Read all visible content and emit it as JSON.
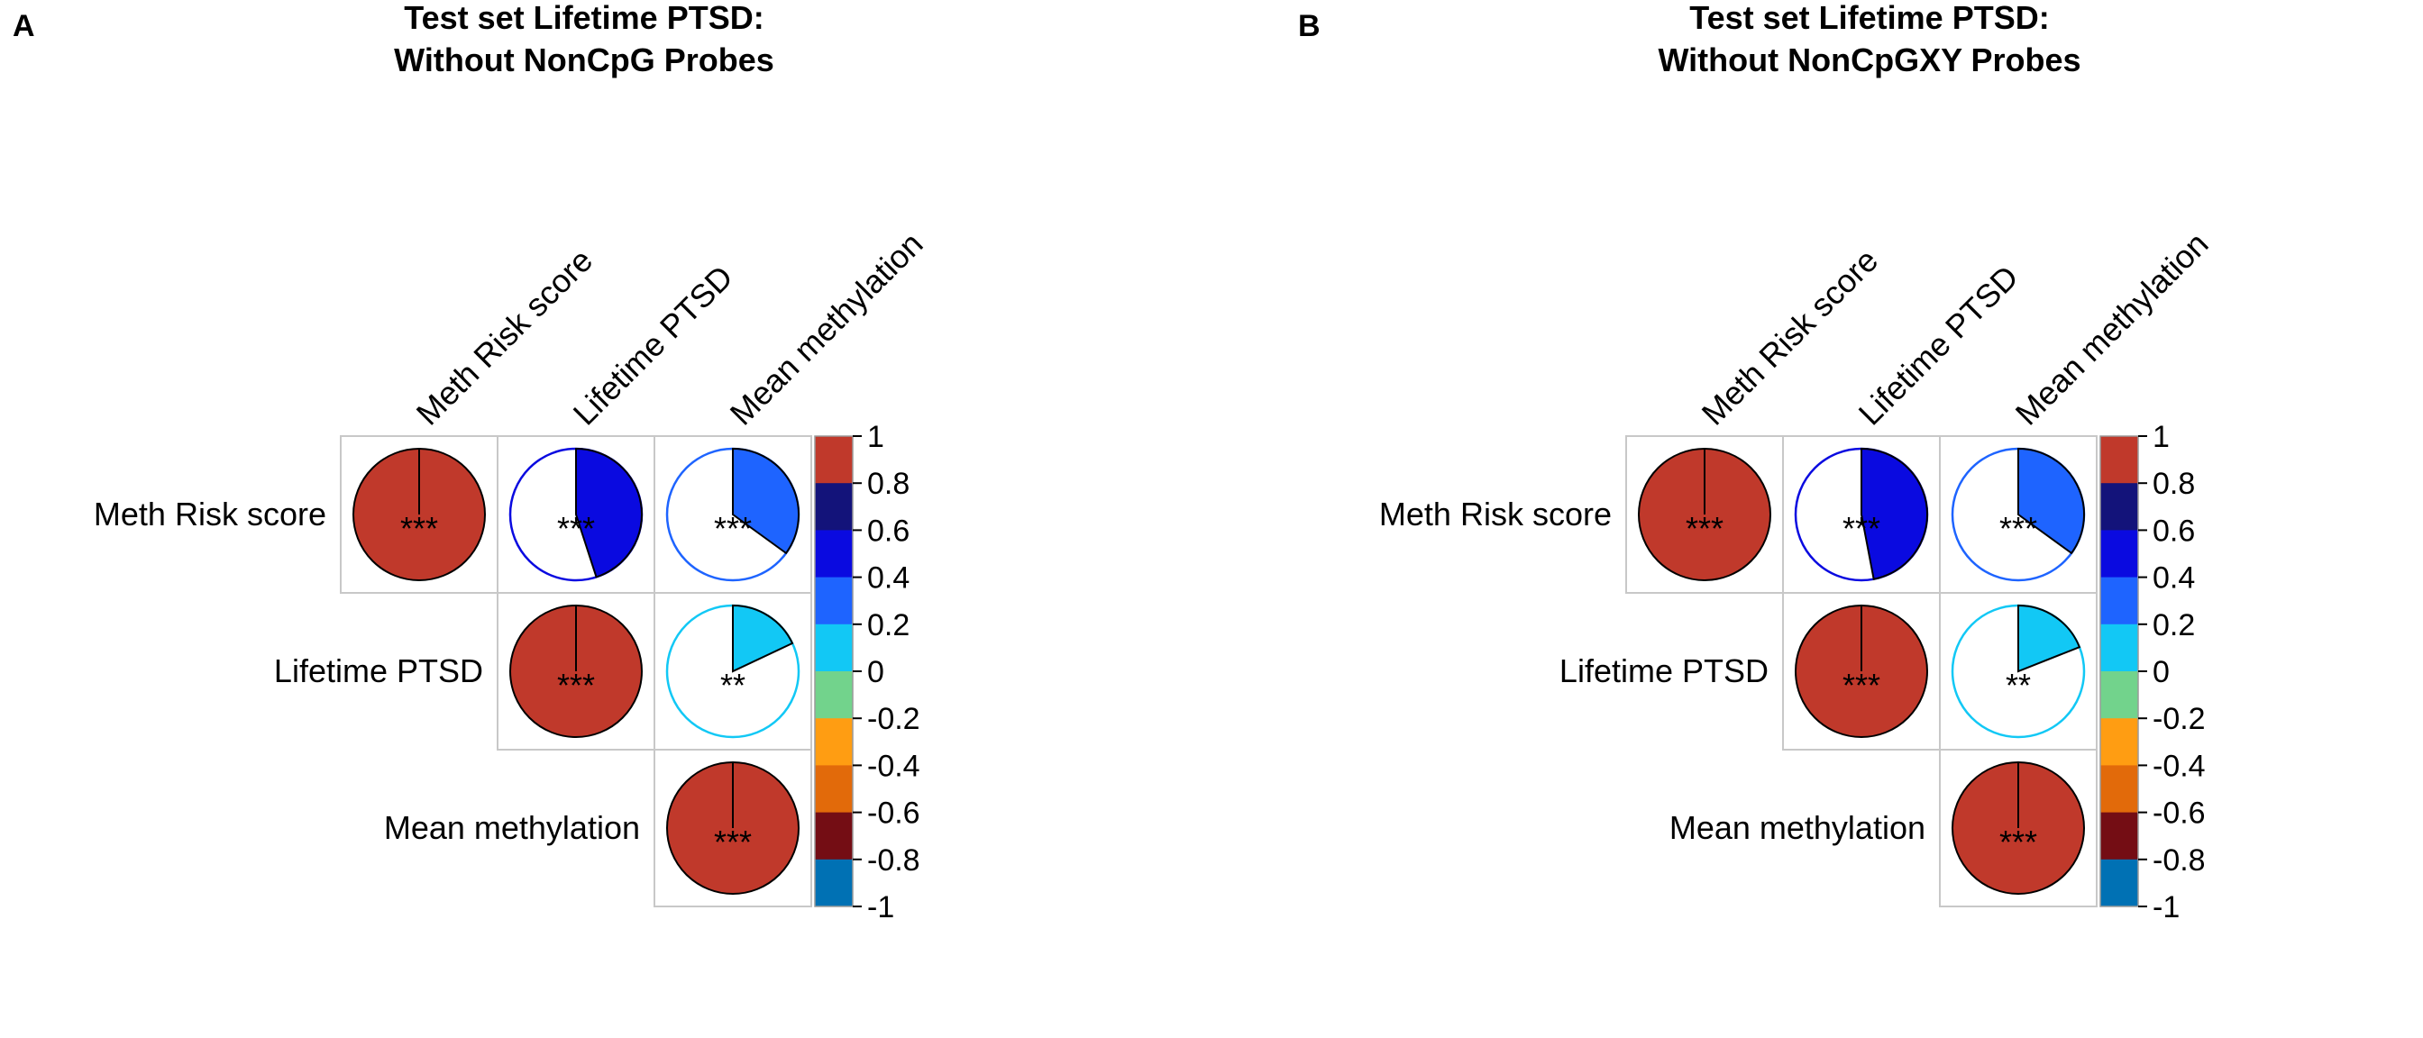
{
  "chart_data": [
    {
      "type": "heatmap",
      "panel_label": "A",
      "title_lines": [
        "Test set Lifetime PTSD:",
        "Without NonCpG Probes"
      ],
      "variables": [
        "Meth Risk score",
        "Lifetime PTSD",
        "Mean methylation"
      ],
      "matrix": [
        [
          1.0,
          0.45,
          0.35
        ],
        [
          0.45,
          1.0,
          0.18
        ],
        [
          0.35,
          0.18,
          1.0
        ]
      ],
      "significance": [
        [
          "***",
          "***",
          "***"
        ],
        [
          "***",
          "***",
          "**"
        ],
        [
          "***",
          "**",
          "***"
        ]
      ],
      "layout": "upper-triangle",
      "glyph": "pie",
      "colorbar": {
        "ticks": [
          "1",
          "0.8",
          "0.6",
          "0.4",
          "0.2",
          "0",
          "-0.2",
          "-0.4",
          "-0.6",
          "-0.8",
          "-1"
        ],
        "colors": [
          "#c0392b",
          "#13137a",
          "#0a0ae0",
          "#1e64ff",
          "#12c8f5",
          "#72d38c",
          "#ff9d12",
          "#e26a0a",
          "#740d14",
          "#0071b4"
        ]
      }
    },
    {
      "type": "heatmap",
      "panel_label": "B",
      "title_lines": [
        "Test set Lifetime PTSD:",
        "Without NonCpGXY Probes"
      ],
      "variables": [
        "Meth Risk score",
        "Lifetime PTSD",
        "Mean methylation"
      ],
      "matrix": [
        [
          1.0,
          0.47,
          0.35
        ],
        [
          0.47,
          1.0,
          0.19
        ],
        [
          0.35,
          0.19,
          1.0
        ]
      ],
      "significance": [
        [
          "***",
          "***",
          "***"
        ],
        [
          "***",
          "***",
          "**"
        ],
        [
          "***",
          "**",
          "***"
        ]
      ],
      "layout": "upper-triangle",
      "glyph": "pie",
      "colorbar": {
        "ticks": [
          "1",
          "0.8",
          "0.6",
          "0.4",
          "0.2",
          "0",
          "-0.2",
          "-0.4",
          "-0.6",
          "-0.8",
          "-1"
        ],
        "colors": [
          "#c0392b",
          "#13137a",
          "#0a0ae0",
          "#1e64ff",
          "#12c8f5",
          "#72d38c",
          "#ff9d12",
          "#e26a0a",
          "#740d14",
          "#0071b4"
        ]
      }
    }
  ]
}
